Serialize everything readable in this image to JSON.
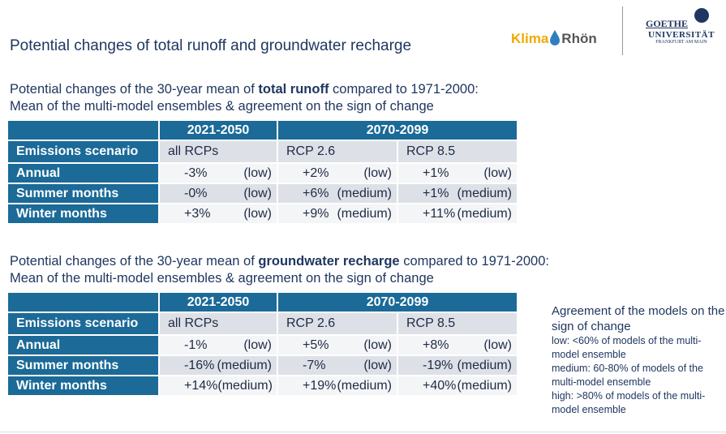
{
  "header": {
    "title": "Potential changes of total runoff and groundwater recharge",
    "logo_klima": "Klima",
    "logo_rhoen": "Rhön",
    "goethe": "GOETHE",
    "universitaet": "UNIVERSITÄT",
    "frankfurt": "FRANKFURT AM MAIN"
  },
  "tables": [
    {
      "caption_before": "Potential changes of the 30-year mean of",
      "caption_bold": "total runoff",
      "caption_after": "compared to 1971-2000:",
      "caption_line2": "Mean of the multi-model ensembles & agreement on the sign of change",
      "periods": [
        "2021-2050",
        "2070-2099"
      ],
      "scenario_label": "Emissions scenario",
      "scenarios": [
        "all RCPs",
        "RCP 2.6",
        "RCP 8.5"
      ],
      "rows": [
        {
          "label": "Annual",
          "cells": [
            [
              "-3%",
              "(low)"
            ],
            [
              "+2%",
              "(low)"
            ],
            [
              "+1%",
              "(low)"
            ]
          ]
        },
        {
          "label": "Summer months",
          "cells": [
            [
              "-0%",
              "(low)"
            ],
            [
              "+6%",
              "(medium)"
            ],
            [
              "+1%",
              "(medium)"
            ]
          ]
        },
        {
          "label": "Winter months",
          "cells": [
            [
              "+3%",
              "(low)"
            ],
            [
              "+9%",
              "(medium)"
            ],
            [
              "+11%",
              "(medium)"
            ]
          ]
        }
      ]
    },
    {
      "caption_before": "Potential changes of the 30-year mean of",
      "caption_bold": "groundwater recharge",
      "caption_after": "compared to 1971-2000:",
      "caption_line2": "Mean of the multi-model ensembles & agreement on the sign of change",
      "periods": [
        "2021-2050",
        "2070-2099"
      ],
      "scenario_label": "Emissions scenario",
      "scenarios": [
        "all RCPs",
        "RCP 2.6",
        "RCP 8.5"
      ],
      "rows": [
        {
          "label": "Annual",
          "cells": [
            [
              "-1%",
              "(low)"
            ],
            [
              "+5%",
              "(low)"
            ],
            [
              "+8%",
              "(low)"
            ]
          ]
        },
        {
          "label": "Summer months",
          "cells": [
            [
              "-16%",
              "(medium)"
            ],
            [
              "-7%",
              "(low)"
            ],
            [
              "-19%",
              "(medium)"
            ]
          ]
        },
        {
          "label": "Winter months",
          "cells": [
            [
              "+14%",
              "(medium)"
            ],
            [
              "+19%",
              "(medium)"
            ],
            [
              "+40%",
              "(medium)"
            ]
          ]
        }
      ]
    }
  ],
  "legend": {
    "title": "Agreement of the models on the sign of change",
    "items": [
      "low: <60% of models of the multi-model ensemble",
      "medium: 60-80% of models of the multi-model ensemble",
      "high: >80% of models of the multi-model ensemble"
    ]
  }
}
